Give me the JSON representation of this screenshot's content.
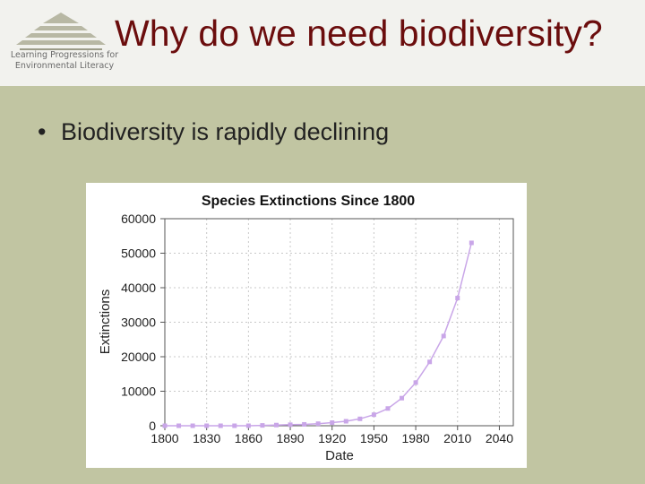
{
  "header": {
    "logo_text_line1": "Learning Progressions for",
    "logo_text_line2": "Environmental Literacy",
    "title": "Why do we need biodiversity?"
  },
  "body": {
    "bullet_char": "•",
    "bullets": [
      "Biodiversity is rapidly declining"
    ]
  },
  "colors": {
    "title": "#6b0d0d",
    "background": "#c1c5a2",
    "header_bg": "#f2f2ee",
    "series": "#c9a6e8",
    "logo": "#b8b8a4"
  },
  "chart_data": {
    "type": "line",
    "title": "Species Extinctions Since 1800",
    "xlabel": "Date",
    "ylabel": "Extinctions",
    "xlim": [
      1800,
      2050
    ],
    "ylim": [
      0,
      60000
    ],
    "x_ticks": [
      1800,
      1830,
      1860,
      1890,
      1920,
      1950,
      1980,
      2010,
      2040
    ],
    "y_ticks": [
      0,
      10000,
      20000,
      30000,
      40000,
      50000,
      60000
    ],
    "grid": true,
    "series": [
      {
        "x": [
          1800,
          1810,
          1820,
          1830,
          1840,
          1850,
          1860,
          1870,
          1880,
          1890,
          1900,
          1910,
          1920,
          1930,
          1940,
          1950,
          1960,
          1970,
          1980,
          1990,
          2000,
          2010,
          2020
        ],
        "y": [
          0,
          0,
          0,
          0,
          0,
          0,
          0,
          100,
          200,
          300,
          400,
          600,
          900,
          1300,
          2000,
          3200,
          5000,
          8000,
          12500,
          18500,
          26000,
          37000,
          53000
        ]
      }
    ]
  }
}
